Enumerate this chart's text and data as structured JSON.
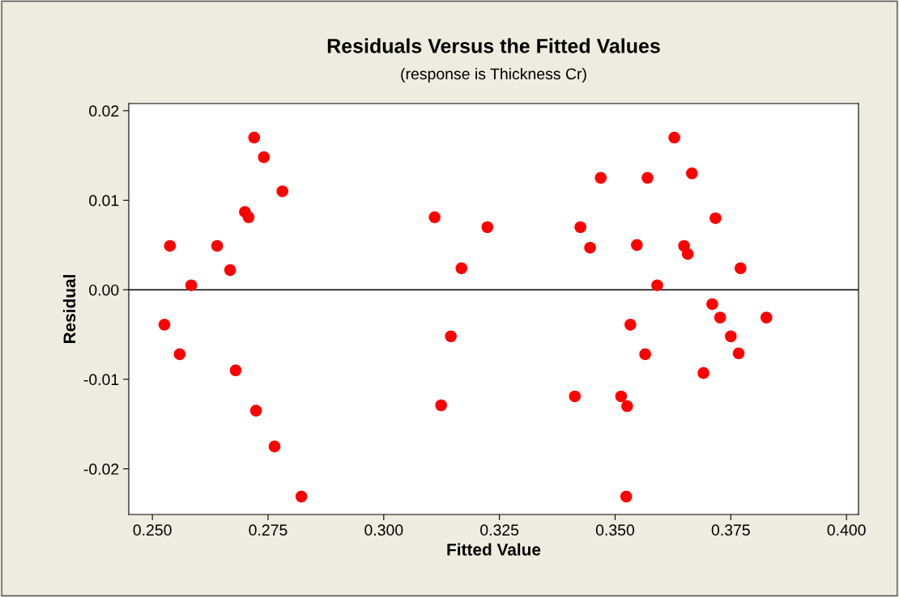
{
  "chart_data": {
    "type": "scatter",
    "title": "Residuals Versus the Fitted Values",
    "subtitle": "(response is Thickness Cr)",
    "xlabel": "Fitted Value",
    "ylabel": "Residual",
    "x": [
      0.2526,
      0.2538,
      0.2559,
      0.2584,
      0.264,
      0.2668,
      0.268,
      0.27,
      0.2708,
      0.272,
      0.2724,
      0.2741,
      0.2764,
      0.2781,
      0.2822,
      0.311,
      0.3124,
      0.3145,
      0.3168,
      0.3224,
      0.3413,
      0.3425,
      0.3446,
      0.3469,
      0.3513,
      0.3524,
      0.3526,
      0.3533,
      0.3545,
      0.3547,
      0.3565,
      0.357,
      0.3591,
      0.3628,
      0.3649,
      0.3657,
      0.3666,
      0.3691,
      0.371,
      0.3717,
      0.3727,
      0.375,
      0.3767,
      0.3771,
      0.3827
    ],
    "values": [
      -0.0039,
      0.0049,
      -0.0072,
      0.0005,
      0.0049,
      0.0022,
      -0.009,
      0.0087,
      0.0081,
      0.017,
      -0.0135,
      0.0148,
      -0.0175,
      0.011,
      -0.0231,
      0.0081,
      -0.0129,
      -0.0052,
      0.0024,
      0.007,
      -0.0119,
      0.007,
      0.0047,
      0.0125,
      -0.0119,
      -0.0231,
      -0.013,
      -0.0039,
      null,
      0.005,
      -0.0072,
      0.0125,
      0.0005,
      0.017,
      0.0049,
      0.004,
      0.013,
      -0.0093,
      -0.0016,
      0.008,
      -0.0031,
      -0.0052,
      -0.0071,
      0.0024,
      -0.0031
    ],
    "color": "#ff0000",
    "marker": "circle",
    "xlim": [
      0.2449,
      0.4026
    ],
    "ylim": [
      -0.0251,
      0.0208
    ],
    "xticks": [
      {
        "value": 0.25,
        "label": "0.250"
      },
      {
        "value": 0.275,
        "label": "0.275"
      },
      {
        "value": 0.3,
        "label": "0.300"
      },
      {
        "value": 0.325,
        "label": "0.325"
      },
      {
        "value": 0.35,
        "label": "0.350"
      },
      {
        "value": 0.375,
        "label": "0.375"
      },
      {
        "value": 0.4,
        "label": "0.400"
      }
    ],
    "yticks": [
      {
        "value": 0.02,
        "label": "0.02"
      },
      {
        "value": 0.01,
        "label": "0.01"
      },
      {
        "value": 0.0,
        "label": "0.00"
      },
      {
        "value": -0.01,
        "label": "-0.01"
      },
      {
        "value": -0.02,
        "label": "-0.02"
      }
    ],
    "ref_lines": [
      {
        "axis": "y",
        "value": 0,
        "color": "#000000"
      }
    ],
    "grid": false
  }
}
